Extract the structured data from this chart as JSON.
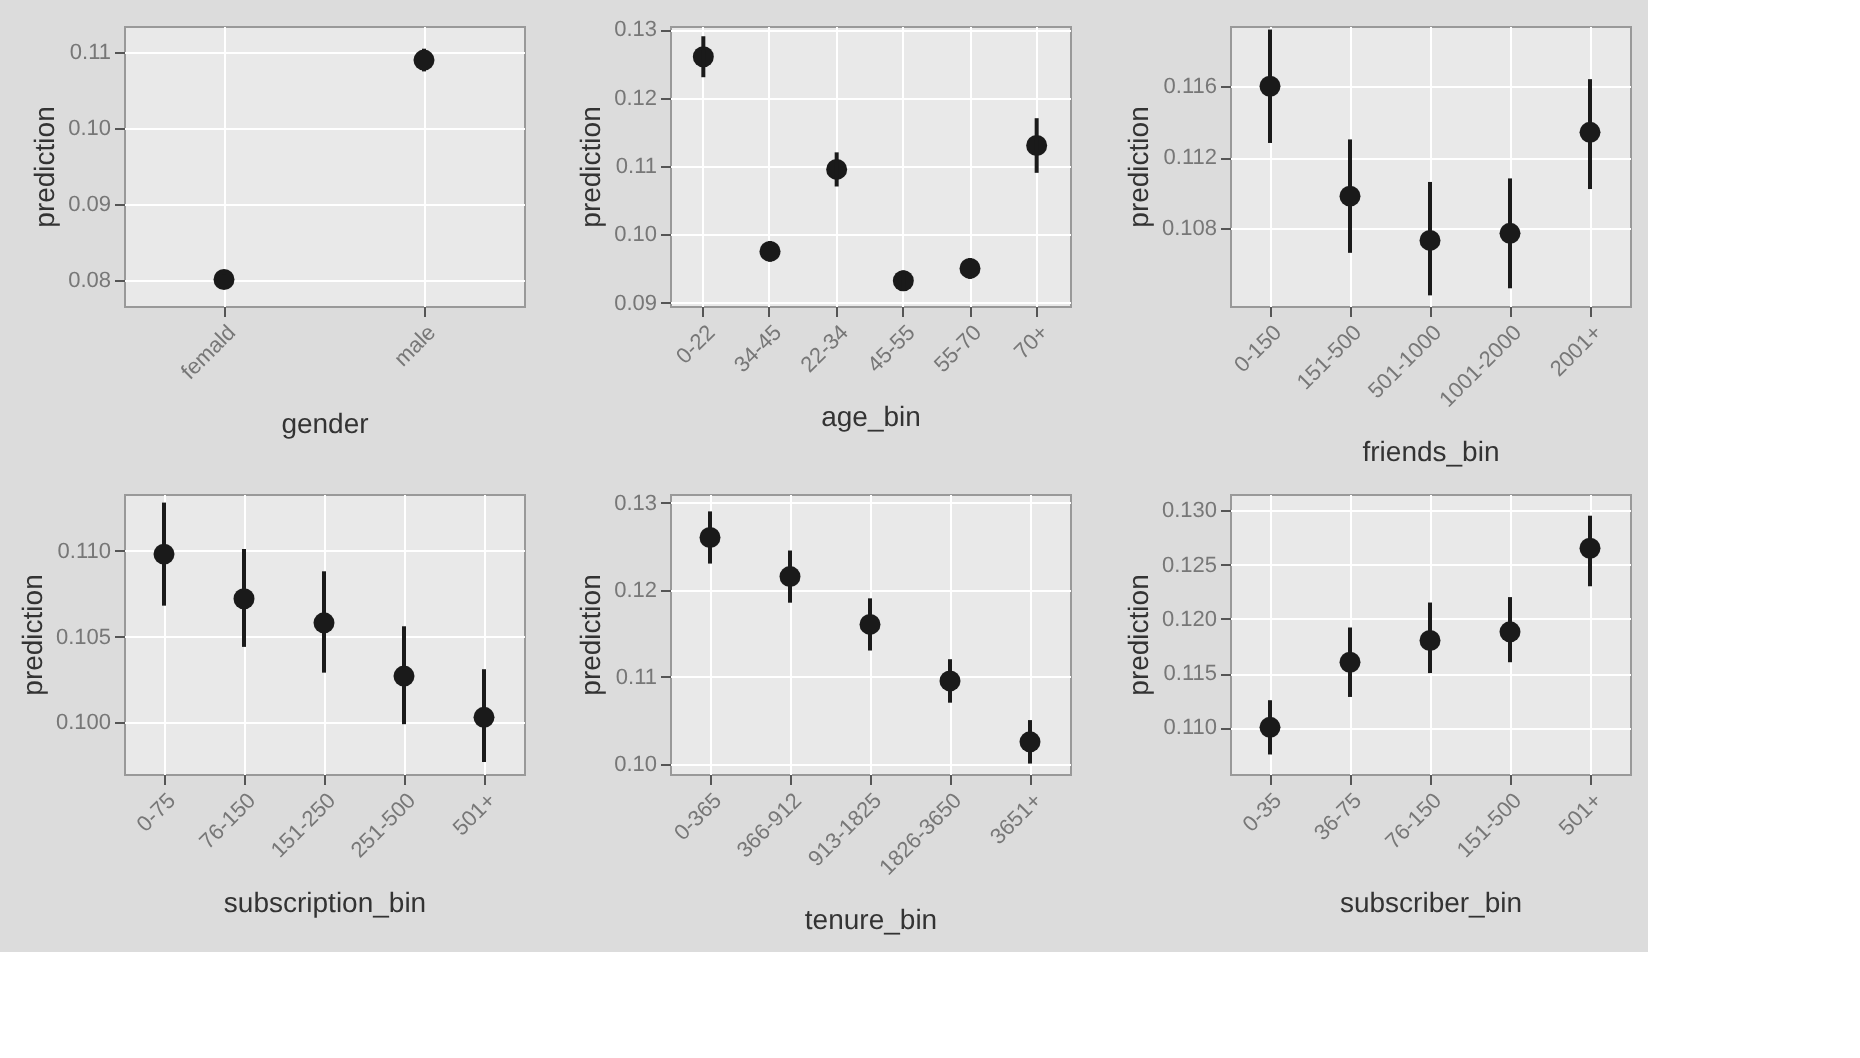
{
  "chart_data": [
    {
      "type": "scatter",
      "xlabel": "gender",
      "ylabel": "prediction",
      "categories": [
        "femald",
        "male"
      ],
      "values": [
        0.08,
        0.109
      ],
      "errors": [
        [
          0.0793,
          0.0807
        ],
        [
          0.1075,
          0.1105
        ]
      ],
      "color": "#1a1a1a",
      "ylim": [
        0.0765,
        0.1135
      ],
      "yticks": [
        {
          "value": 0.08,
          "label": "0.08"
        },
        {
          "value": 0.09,
          "label": "0.09"
        },
        {
          "value": 0.1,
          "label": "0.10"
        },
        {
          "value": 0.11,
          "label": "0.11"
        }
      ],
      "grid": true,
      "marker": "circle"
    },
    {
      "type": "scatter",
      "xlabel": "age_bin",
      "ylabel": "prediction",
      "categories": [
        "0-22",
        "34-45",
        "22-34",
        "45-55",
        "55-70",
        "70+"
      ],
      "values": [
        0.126,
        0.0975,
        0.1095,
        0.0932,
        0.095,
        0.113
      ],
      "errors": [
        [
          0.123,
          0.129
        ],
        [
          0.096,
          0.099
        ],
        [
          0.107,
          0.112
        ],
        [
          0.0917,
          0.0947
        ],
        [
          0.0935,
          0.0965
        ],
        [
          0.109,
          0.117
        ]
      ],
      "color": "#1a1a1a",
      "ylim": [
        0.0895,
        0.1305
      ],
      "yticks": [
        {
          "value": 0.09,
          "label": "0.09"
        },
        {
          "value": 0.1,
          "label": "0.10"
        },
        {
          "value": 0.11,
          "label": "0.11"
        },
        {
          "value": 0.12,
          "label": "0.12"
        },
        {
          "value": 0.13,
          "label": "0.13"
        }
      ],
      "grid": true,
      "marker": "circle"
    },
    {
      "type": "scatter",
      "xlabel": "friends_bin",
      "ylabel": "prediction",
      "categories": [
        "0-150",
        "151-500",
        "501-1000",
        "1001-2000",
        "2001+"
      ],
      "values": [
        0.116,
        0.1098,
        0.1073,
        0.1077,
        0.1134
      ],
      "errors": [
        [
          0.1128,
          0.1192
        ],
        [
          0.1066,
          0.113
        ],
        [
          0.1042,
          0.1106
        ],
        [
          0.1046,
          0.1108
        ],
        [
          0.1102,
          0.1164
        ]
      ],
      "color": "#1a1a1a",
      "ylim": [
        0.1036,
        0.1194
      ],
      "yticks": [
        0.108,
        0.112,
        0.116
      ],
      "grid": true,
      "marker": "circle"
    },
    {
      "type": "scatter",
      "xlabel": "subscription_bin",
      "ylabel": "prediction",
      "categories": [
        "0-75",
        "76-150",
        "151-250",
        "251-500",
        "501+"
      ],
      "values": [
        0.1098,
        0.1072,
        0.1058,
        0.1027,
        0.1003
      ],
      "errors": [
        [
          0.1068,
          0.1128
        ],
        [
          0.1044,
          0.1101
        ],
        [
          0.1029,
          0.1088
        ],
        [
          0.0999,
          0.1056
        ],
        [
          0.0977,
          0.1031
        ]
      ],
      "color": "#1a1a1a",
      "ylim": [
        0.097,
        0.1133
      ],
      "yticks": [
        {
          "value": 0.1,
          "label": "0.100"
        },
        0.105,
        {
          "value": 0.11,
          "label": "0.110"
        }
      ],
      "grid": true,
      "marker": "circle"
    },
    {
      "type": "scatter",
      "xlabel": "tenure_bin",
      "ylabel": "prediction",
      "categories": [
        "0-365",
        "366-912",
        "913-1825",
        "1826-3650",
        "3651+"
      ],
      "values": [
        0.126,
        0.1215,
        0.116,
        0.1095,
        0.1025
      ],
      "errors": [
        [
          0.123,
          0.129
        ],
        [
          0.1185,
          0.1245
        ],
        [
          0.113,
          0.119
        ],
        [
          0.107,
          0.112
        ],
        [
          0.1,
          0.105
        ]
      ],
      "color": "#1a1a1a",
      "ylim": [
        0.0988,
        0.131
      ],
      "yticks": [
        {
          "value": 0.1,
          "label": "0.10"
        },
        0.11,
        0.12,
        0.13
      ],
      "grid": true,
      "marker": "circle"
    },
    {
      "type": "scatter",
      "xlabel": "subscriber_bin",
      "ylabel": "prediction",
      "categories": [
        "0-35",
        "36-75",
        "76-150",
        "151-500",
        "501+"
      ],
      "values": [
        0.11,
        0.116,
        0.118,
        0.1188,
        0.1265
      ],
      "errors": [
        [
          0.1075,
          0.1125
        ],
        [
          0.1128,
          0.1192
        ],
        [
          0.115,
          0.1215
        ],
        [
          0.116,
          0.122
        ],
        [
          0.123,
          0.1295
        ]
      ],
      "color": "#1a1a1a",
      "ylim": [
        0.1057,
        0.1315
      ],
      "yticks": [
        {
          "value": 0.11,
          "label": "0.110"
        },
        0.115,
        {
          "value": 0.12,
          "label": "0.120"
        },
        0.125,
        {
          "value": 0.13,
          "label": "0.130"
        }
      ],
      "grid": true,
      "marker": "circle"
    }
  ]
}
